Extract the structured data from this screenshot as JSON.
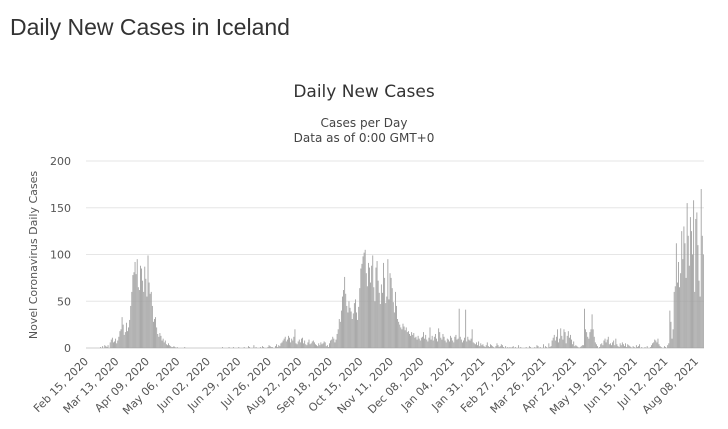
{
  "page": {
    "title": "Daily New Cases in Iceland"
  },
  "chart_data": {
    "type": "bar",
    "title": "Daily New Cases",
    "subtitle": "Cases per Day",
    "subtitle2": "Data as of 0:00 GMT+0",
    "xlabel": "",
    "ylabel": "Novel Coronavirus Daily Cases",
    "ylim": [
      0,
      200
    ],
    "yticks": [
      0,
      50,
      100,
      150,
      200
    ],
    "grid": true,
    "bar_color": "#9e9e9e",
    "x_start": "Feb 15, 2020",
    "x_end": "Aug 16, 2021",
    "xticks": [
      "Feb 15, 2020",
      "Mar 13, 2020",
      "Apr 09, 2020",
      "May 06, 2020",
      "Jun 02, 2020",
      "Jun 29, 2020",
      "Jul 26, 2020",
      "Aug 22, 2020",
      "Sep 18, 2020",
      "Oct 15, 2020",
      "Nov 11, 2020",
      "Dec 08, 2020",
      "Jan 04, 2021",
      "Jan 31, 2021",
      "Feb 27, 2021",
      "Mar 26, 2021",
      "Apr 22, 2021",
      "May 19, 2021",
      "Jun 15, 2021",
      "Jul 12, 2021",
      "Aug 08, 2021"
    ],
    "series": [
      {
        "values": [
          [
            0,
            0,
            0,
            0,
            0,
            0,
            0,
            0,
            0,
            0,
            0,
            0,
            0,
            1,
            0,
            2,
            0,
            3,
            2,
            1,
            3,
            0,
            6,
            9,
            11,
            6,
            7,
            10,
            5,
            8,
            12,
            18,
            20,
            33,
            25,
            14,
            17,
            27,
            18,
            22,
            30,
            45,
            60,
            78,
            81,
            92,
            79,
            95,
            65,
            62,
            88,
            85,
            72,
            60,
            87,
            74,
            55,
            99,
            70,
            58,
            60,
            45,
            28,
            31,
            33,
            22,
            15,
            12,
            16,
            13,
            8,
            10,
            6,
            8,
            4,
            3,
            5,
            3,
            2,
            1,
            1,
            2,
            1,
            0,
            1,
            0,
            0,
            0,
            0,
            0,
            0,
            1,
            0,
            0,
            0,
            0,
            0,
            0,
            0,
            0,
            0,
            0,
            0,
            0,
            0,
            0,
            0,
            0,
            0,
            0,
            0,
            0,
            0,
            0,
            0,
            0,
            0,
            0,
            0,
            0,
            0
          ],
          [
            0,
            0,
            0,
            0,
            0,
            1,
            0,
            0,
            0,
            0,
            0,
            1,
            0,
            0,
            0,
            1,
            0,
            0,
            0,
            0,
            1,
            0,
            0,
            0,
            0,
            1,
            0,
            0,
            0,
            2,
            1,
            0,
            0,
            0,
            3,
            0,
            1,
            0,
            0,
            0,
            1,
            0,
            2,
            1,
            0,
            0,
            0,
            1,
            3,
            2,
            1,
            1,
            0,
            0,
            2,
            4,
            1,
            3,
            2,
            5,
            6,
            8,
            10,
            12,
            7,
            9,
            13,
            11,
            6,
            10,
            8,
            12,
            20,
            5,
            4,
            7,
            9,
            6,
            10,
            11,
            5,
            8,
            4,
            3,
            6,
            9,
            4,
            5,
            7,
            8,
            6,
            4,
            3,
            2,
            5,
            3,
            6,
            4,
            5,
            7,
            6,
            2,
            3,
            1,
            5,
            8,
            9,
            12,
            10,
            6,
            9,
            15,
            20,
            31,
            28,
            40,
            55,
            62,
            76,
            58,
            45,
            38,
            50,
            43,
            39,
            31,
            37,
            48,
            52,
            38,
            30,
            44,
            64,
            85,
            90,
            98,
            102,
            105,
            80,
            66,
            91,
            86,
            70,
            88,
            99,
            65,
            50,
            86,
            93,
            72,
            59,
            47,
            68,
            59,
            91,
            75,
            48,
            55,
            95,
            52,
            80,
            75,
            64,
            49,
            38,
            60,
            45,
            31,
            28,
            25,
            22,
            20,
            26,
            23,
            19,
            22,
            17,
            18,
            15,
            13,
            17,
            14,
            16,
            11,
            12,
            9,
            13,
            10,
            8,
            11,
            12,
            17,
            10,
            14,
            9,
            7,
            11,
            22,
            9,
            13,
            8,
            12,
            15,
            10,
            7,
            21,
            17,
            11,
            9,
            15,
            12,
            8,
            6,
            10,
            9,
            7,
            13,
            11,
            8,
            6,
            12,
            14,
            9,
            10,
            42,
            12,
            9,
            6,
            8,
            11,
            41,
            7,
            12,
            9,
            8,
            10,
            20,
            6,
            5,
            4,
            6,
            3,
            7,
            2,
            5,
            3,
            4,
            2,
            1,
            3,
            6,
            2,
            1,
            4,
            3,
            2,
            1,
            0,
            2,
            5,
            3,
            1,
            2,
            4,
            3,
            1,
            0,
            2,
            0,
            1,
            0,
            1,
            0,
            1,
            2,
            0,
            1,
            0,
            0,
            3,
            0,
            1,
            0,
            0,
            0,
            0,
            1,
            0,
            0,
            2,
            1,
            0,
            0,
            0,
            1,
            0,
            3,
            2,
            0,
            1,
            0,
            0,
            4,
            0,
            2,
            1,
            0,
            5,
            1,
            2,
            8,
            11,
            14,
            8,
            12,
            20,
            6,
            10,
            21,
            13,
            9,
            20,
            17,
            5,
            13,
            18,
            11,
            14,
            9,
            4,
            7,
            2,
            3,
            2,
            1,
            0,
            1,
            2,
            3,
            3,
            42,
            20,
            17,
            12,
            10,
            17,
            20,
            36,
            20,
            12,
            6,
            4,
            2,
            0,
            1,
            4,
            5,
            3,
            8,
            10,
            6,
            9,
            12,
            4,
            5,
            3,
            6,
            8,
            3,
            10,
            4,
            2,
            1,
            5,
            3,
            6,
            4,
            2,
            5,
            1,
            4,
            3,
            2,
            1,
            0,
            2,
            1,
            0,
            3,
            1,
            2,
            4,
            0,
            1,
            0,
            0,
            1,
            0,
            2,
            0,
            0,
            1,
            3,
            5,
            6,
            9,
            8,
            6,
            10,
            4,
            2,
            1,
            0,
            0,
            2,
            1,
            0,
            3,
            5,
            40,
            28,
            10,
            20,
            60,
            66,
            112,
            70,
            92,
            65,
            80,
            125,
            95,
            130,
            112,
            75,
            155,
            120,
            88,
            140,
            125,
            100,
            158,
            60,
            138,
            145,
            110,
            72,
            55,
            170,
            120,
            100
          ]
        ]
      }
    ]
  }
}
